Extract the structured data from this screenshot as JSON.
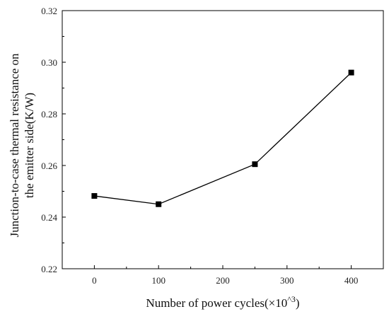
{
  "chart_data": {
    "type": "line",
    "xlabel": "Number of power cycles(×10^3)",
    "ylabel_lines": [
      "Junction-to-case thermal resistance on",
      "the emitter side(K/W)"
    ],
    "xlim": [
      -50,
      450
    ],
    "ylim": [
      0.22,
      0.32
    ],
    "x_ticks": [
      0,
      100,
      200,
      300,
      400
    ],
    "y_ticks": [
      0.22,
      0.24,
      0.26,
      0.28,
      0.3,
      0.32
    ],
    "x_tick_labels": [
      "0",
      "100",
      "200",
      "300",
      "400"
    ],
    "y_tick_labels": [
      "0.22",
      "0.24",
      "0.26",
      "0.28",
      "0.30",
      "0.32"
    ],
    "grid": false,
    "marker": "square",
    "color": "#000000",
    "series": [
      {
        "x": [
          0,
          100,
          250,
          400
        ],
        "values": [
          0.2482,
          0.245,
          0.2605,
          0.296
        ]
      }
    ]
  }
}
